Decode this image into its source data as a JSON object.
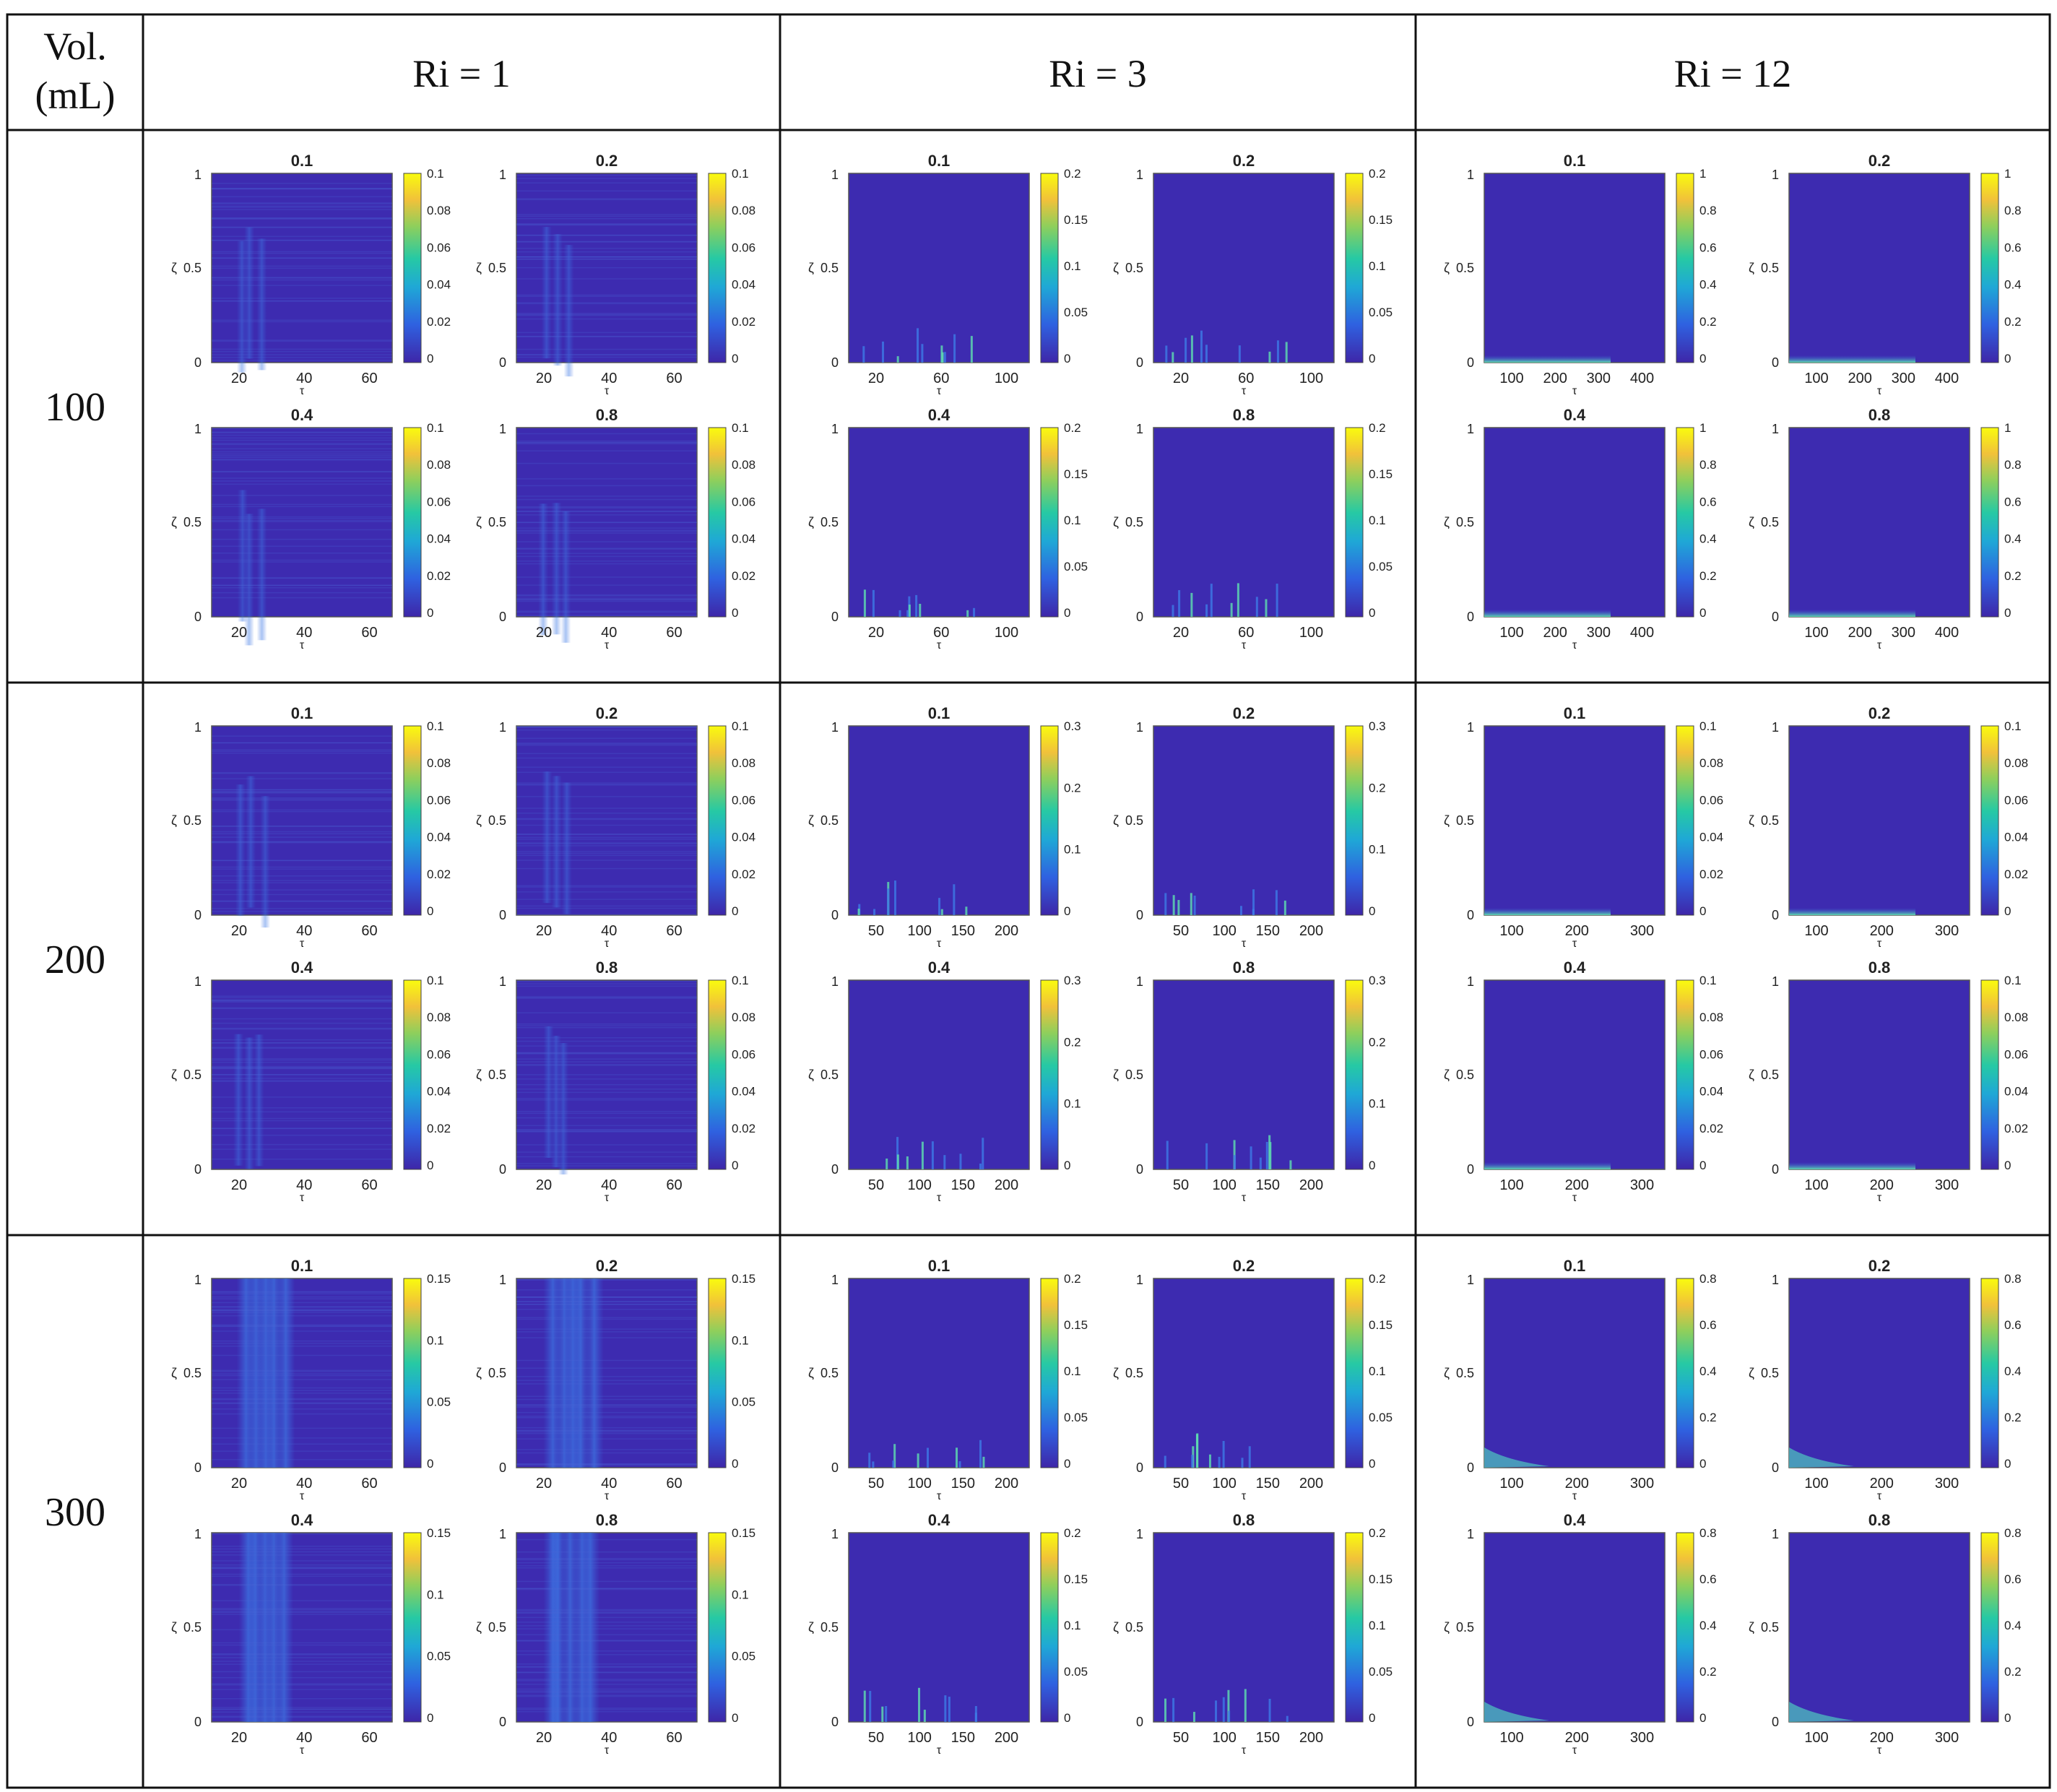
{
  "table": {
    "header": {
      "vol_label_line1": "Vol.",
      "vol_label_line2": "(mL)",
      "columns": [
        "Ri = 1",
        "Ri = 3",
        "Ri = 12"
      ]
    },
    "rows": [
      {
        "label": "100"
      },
      {
        "label": "200"
      },
      {
        "label": "300"
      }
    ]
  },
  "colors": {
    "heatmap_base": "#3d2bb0",
    "heatmap_mid": "#2d6fe0",
    "border": "#111111"
  },
  "chart_data": {
    "type": "heatmap",
    "panel_titles": [
      "0.1",
      "0.2",
      "0.4",
      "0.8"
    ],
    "y_axis_label": "ζ",
    "x_axis_label": "τ",
    "yticks": [
      "0",
      "0.5",
      "1"
    ],
    "colorbar_colors": [
      "#3e26a8",
      "#2f61e0",
      "#1fa8d6",
      "#26c9a4",
      "#8ecf5c",
      "#f1c13a",
      "#f9fb0e"
    ],
    "cells": [
      [
        {
          "xticks": [
            "20",
            "40",
            "60"
          ],
          "cbar": [
            "0.1",
            "0.08",
            "0.06",
            "0.04",
            "0.02",
            "0"
          ],
          "pattern": "streak"
        },
        {
          "xticks": [
            "20",
            "60",
            "100"
          ],
          "cbar": [
            "0.2",
            "0.15",
            "0.1",
            "0.05",
            "0"
          ],
          "pattern": "sparse"
        },
        {
          "xticks": [
            "100",
            "200",
            "300",
            "400"
          ],
          "cbar": [
            "1",
            "0.8",
            "0.6",
            "0.4",
            "0.2",
            "0"
          ],
          "pattern": "bottom"
        }
      ],
      [
        {
          "xticks": [
            "20",
            "40",
            "60"
          ],
          "cbar": [
            "0.1",
            "0.08",
            "0.06",
            "0.04",
            "0.02",
            "0"
          ],
          "pattern": "streak"
        },
        {
          "xticks": [
            "50",
            "100",
            "150",
            "200"
          ],
          "cbar": [
            "0.3",
            "0.2",
            "0.1",
            "0"
          ],
          "pattern": "sparse"
        },
        {
          "xticks": [
            "100",
            "200",
            "300"
          ],
          "cbar": [
            "0.1",
            "0.08",
            "0.06",
            "0.04",
            "0.02",
            "0"
          ],
          "pattern": "bottom"
        }
      ],
      [
        {
          "xticks": [
            "20",
            "40",
            "60"
          ],
          "cbar": [
            "0.15",
            "0.1",
            "0.05",
            "0"
          ],
          "pattern": "strong"
        },
        {
          "xticks": [
            "50",
            "100",
            "150",
            "200"
          ],
          "cbar": [
            "0.2",
            "0.15",
            "0.1",
            "0.05",
            "0"
          ],
          "pattern": "sparse"
        },
        {
          "xticks": [
            "100",
            "200",
            "300"
          ],
          "cbar": [
            "0.8",
            "0.6",
            "0.4",
            "0.2",
            "0"
          ],
          "pattern": "corner"
        }
      ]
    ]
  }
}
